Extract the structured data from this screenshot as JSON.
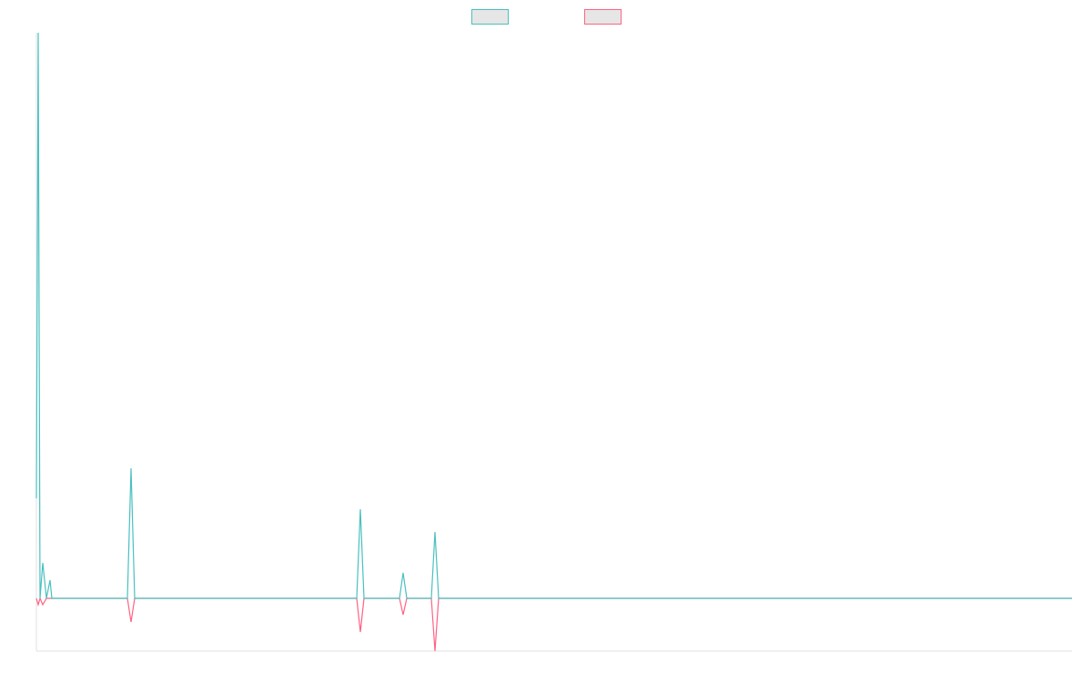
{
  "chart_data": {
    "type": "line",
    "x": [
      0,
      2,
      4,
      7,
      11,
      15,
      17,
      100,
      104,
      108,
      352,
      356,
      360,
      399,
      403,
      407,
      434,
      438,
      442,
      1138
    ],
    "xlim": [
      0,
      1138
    ],
    "ylim": [
      -58,
      622
    ],
    "legend": "top",
    "series": [
      {
        "color": "#4bc0c0",
        "values": [
          110,
          622,
          0,
          39,
          0,
          20,
          0,
          0,
          143,
          0,
          0,
          98,
          0,
          0,
          28,
          0,
          0,
          73,
          0,
          0
        ]
      },
      {
        "color": "#ff6384",
        "values": [
          0,
          -7,
          0,
          -7,
          0,
          0,
          0,
          0,
          -26,
          0,
          0,
          -37,
          0,
          0,
          -18,
          0,
          0,
          -58,
          0,
          0
        ]
      }
    ]
  }
}
